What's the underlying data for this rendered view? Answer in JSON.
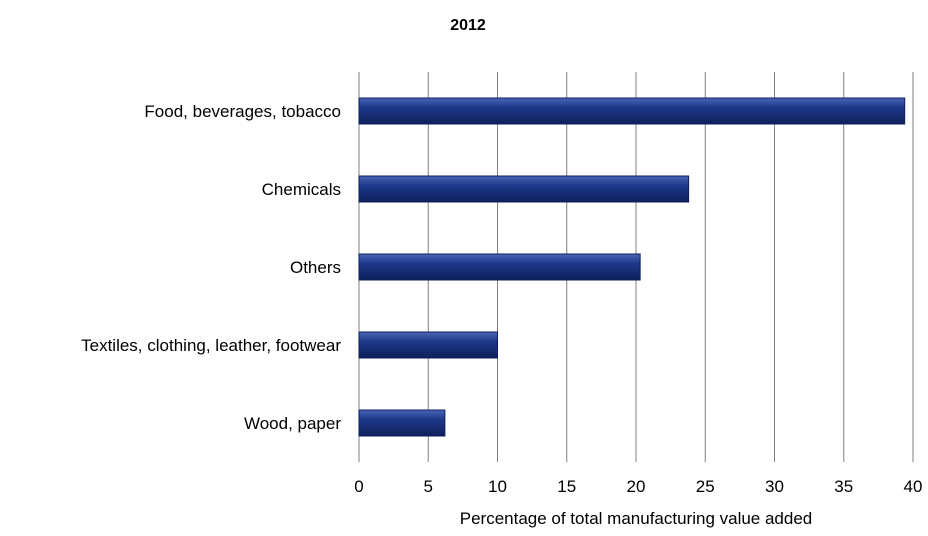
{
  "chart_data": {
    "type": "bar",
    "orientation": "horizontal",
    "title": "2012",
    "xlabel": "Percentage of total manufacturing value added",
    "ylabel": "",
    "categories": [
      "Food, beverages, tobacco",
      "Chemicals",
      "Others",
      "Textiles, clothing, leather, footwear",
      "Wood, paper"
    ],
    "values": [
      39.4,
      23.8,
      20.3,
      10.0,
      6.2
    ],
    "xlim": [
      0,
      40
    ],
    "ticks": [
      "0",
      "5",
      "10",
      "15",
      "20",
      "25",
      "30",
      "35",
      "40"
    ],
    "grid": "vertical",
    "legend": "none",
    "colors": {
      "bar": "#1f3a8a",
      "bar_dark": "#0d1f5c",
      "bar_light": "#4a66b8",
      "grid": "#808080"
    }
  }
}
